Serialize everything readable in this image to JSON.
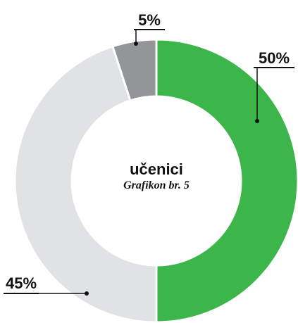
{
  "chart_data": {
    "type": "pie",
    "title": "učenici",
    "subtitle": "Grafikon br. 5",
    "values": [
      50,
      45,
      5
    ],
    "value_labels": [
      "50%",
      "45%",
      "5%"
    ],
    "colors": [
      "#3cb54a",
      "#e1e2e4",
      "#939598"
    ]
  }
}
